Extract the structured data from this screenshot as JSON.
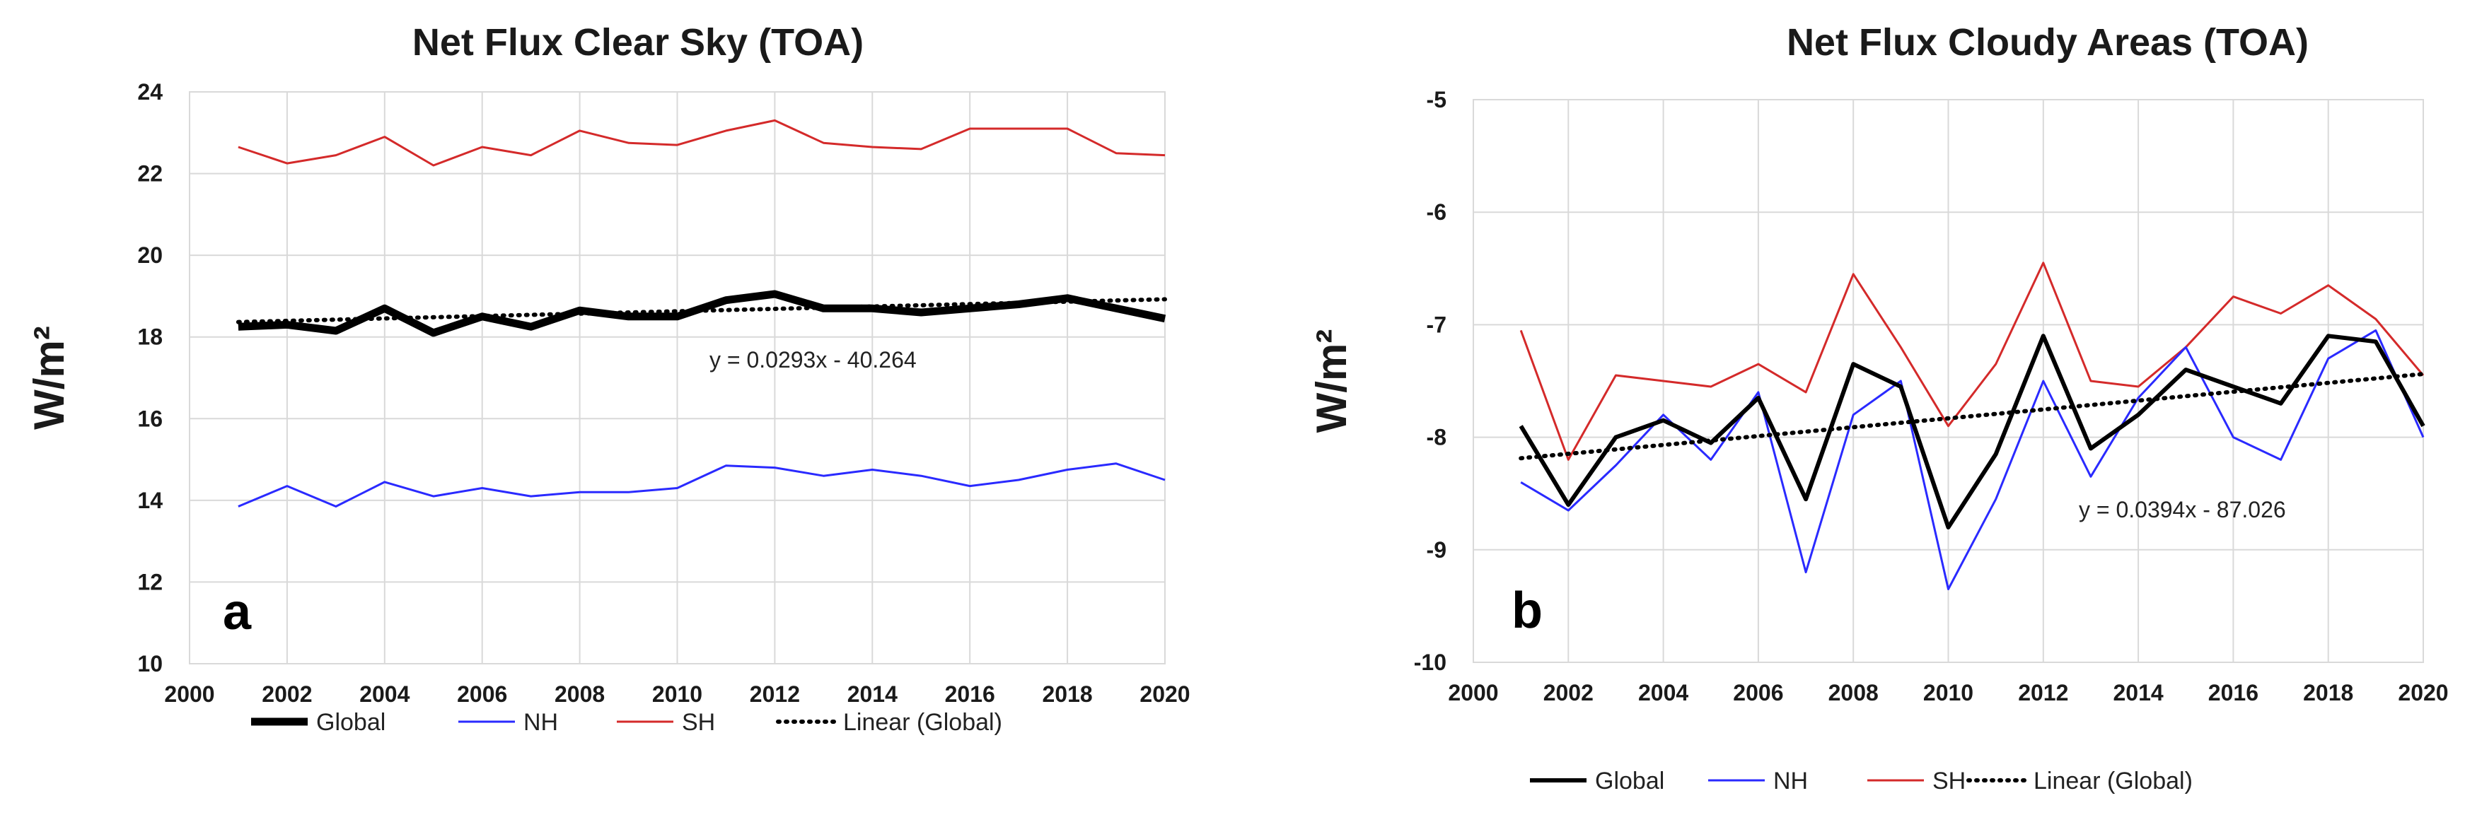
{
  "chart_data": [
    {
      "type": "line",
      "title": "Net Flux Clear Sky (TOA)",
      "ylabel": "W/m²",
      "xlabel": "",
      "panel_label": "a",
      "xlim": [
        2000,
        2020
      ],
      "ylim": [
        10,
        24
      ],
      "xticks": [
        2000,
        2002,
        2004,
        2006,
        2008,
        2010,
        2012,
        2014,
        2016,
        2018,
        2020
      ],
      "yticks": [
        10,
        12,
        14,
        16,
        18,
        20,
        22,
        24
      ],
      "grid": true,
      "legend_position": "bottom",
      "x": [
        2001,
        2002,
        2003,
        2004,
        2005,
        2006,
        2007,
        2008,
        2009,
        2010,
        2011,
        2012,
        2013,
        2014,
        2015,
        2016,
        2017,
        2018,
        2019,
        2020
      ],
      "series": [
        {
          "name": "Global",
          "color": "#000000",
          "style": "thick",
          "values": [
            18.25,
            18.3,
            18.15,
            18.7,
            18.1,
            18.5,
            18.25,
            18.65,
            18.5,
            18.5,
            18.9,
            19.05,
            18.7,
            18.7,
            18.6,
            18.7,
            18.8,
            18.95,
            18.7,
            18.45
          ]
        },
        {
          "name": "NH",
          "color": "#2a2aff",
          "style": "solid",
          "values": [
            13.85,
            14.35,
            13.85,
            14.45,
            14.1,
            14.3,
            14.1,
            14.2,
            14.2,
            14.3,
            14.85,
            14.8,
            14.6,
            14.75,
            14.6,
            14.35,
            14.5,
            14.75,
            14.9,
            14.5
          ]
        },
        {
          "name": "SH",
          "color": "#d42a2a",
          "style": "solid",
          "values": [
            22.65,
            22.25,
            22.45,
            22.9,
            22.2,
            22.65,
            22.45,
            23.05,
            22.75,
            22.7,
            23.05,
            23.3,
            22.75,
            22.65,
            22.6,
            23.1,
            23.1,
            23.1,
            22.5,
            22.45
          ]
        },
        {
          "name": "Linear (Global)",
          "color": "#000000",
          "style": "dotted",
          "slope": 0.0293,
          "intercept": -40.264
        }
      ],
      "annotations": [
        {
          "text": "y = 0.0293x - 40.264"
        }
      ]
    },
    {
      "type": "line",
      "title": "Net Flux Cloudy Areas (TOA)",
      "ylabel": "W/m²",
      "xlabel": "",
      "panel_label": "b",
      "xlim": [
        2000,
        2020
      ],
      "ylim": [
        -10,
        -5
      ],
      "xticks": [
        2000,
        2002,
        2004,
        2006,
        2008,
        2010,
        2012,
        2014,
        2016,
        2018,
        2020
      ],
      "yticks": [
        -10,
        -9,
        -8,
        -7,
        -6,
        -5
      ],
      "grid": true,
      "legend_position": "bottom",
      "x": [
        2001,
        2002,
        2003,
        2004,
        2005,
        2006,
        2007,
        2008,
        2009,
        2010,
        2011,
        2012,
        2013,
        2014,
        2015,
        2016,
        2017,
        2018,
        2019,
        2020
      ],
      "series": [
        {
          "name": "Global",
          "color": "#000000",
          "style": "medium",
          "values": [
            -7.9,
            -8.6,
            -8.0,
            -7.85,
            -8.05,
            -7.65,
            -8.55,
            -7.35,
            -7.55,
            -8.8,
            -8.15,
            -7.1,
            -8.1,
            -7.8,
            -7.4,
            -7.55,
            -7.7,
            -7.1,
            -7.15,
            -7.9
          ]
        },
        {
          "name": "NH",
          "color": "#2a2aff",
          "style": "solid",
          "values": [
            -8.4,
            -8.65,
            -8.25,
            -7.8,
            -8.2,
            -7.6,
            -9.2,
            -7.8,
            -7.5,
            -9.35,
            -8.55,
            -7.5,
            -8.35,
            -7.65,
            -7.2,
            -8.0,
            -8.2,
            -7.3,
            -7.05,
            -8.0
          ]
        },
        {
          "name": "SH",
          "color": "#d42a2a",
          "style": "solid",
          "values": [
            -7.05,
            -8.2,
            -7.45,
            -7.5,
            -7.55,
            -7.35,
            -7.6,
            -6.55,
            -7.2,
            -7.9,
            -7.35,
            -6.45,
            -7.5,
            -7.55,
            -7.2,
            -6.75,
            -6.9,
            -6.65,
            -6.95,
            -7.45
          ]
        },
        {
          "name": "Linear (Global)",
          "color": "#000000",
          "style": "dotted",
          "slope": 0.0394,
          "intercept": -87.026
        }
      ],
      "annotations": [
        {
          "text": "y = 0.0394x - 87.026"
        }
      ]
    }
  ]
}
